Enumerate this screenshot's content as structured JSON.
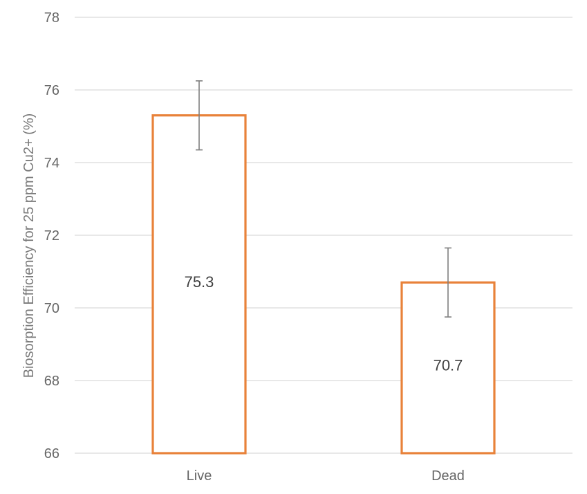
{
  "chart_data": {
    "type": "bar",
    "title": "",
    "xlabel": "",
    "ylabel": "Biosorption Efficiency for 25 ppm Cu2+ (%)",
    "categories": [
      "Live",
      "Dead"
    ],
    "values": [
      75.3,
      70.7
    ],
    "value_labels": [
      "75.3",
      "70.7"
    ],
    "error": [
      0.95,
      0.95
    ],
    "ylim": [
      66,
      78
    ],
    "yticks": [
      66,
      68,
      70,
      72,
      74,
      76,
      78
    ],
    "grid": true,
    "legend": "none",
    "colors": {
      "bar_outline": "#e8823a",
      "bar_fill": "#ffffff",
      "grid": "#d9d9d9",
      "error_bar": "#7f7f7f",
      "tick_text": "#666666"
    }
  }
}
